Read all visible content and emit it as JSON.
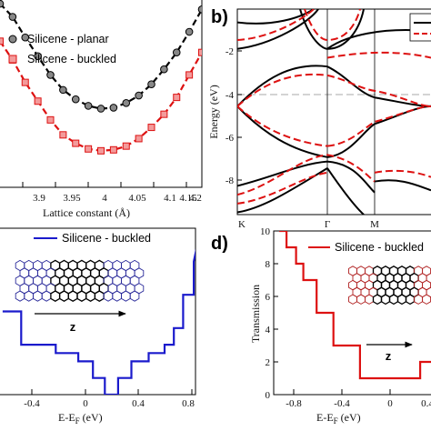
{
  "chart_data": [
    {
      "type": "line",
      "xlabel": "Lattice constant (Å)",
      "ylabel": "",
      "xlim": [
        3.8,
        4.2
      ],
      "ylim": [
        0,
        1
      ],
      "xticks": [
        "3.9",
        "3.95",
        "4",
        "4.05",
        "4.1",
        "4.15",
        "4.2"
      ],
      "legend_position": "top-left",
      "series": [
        {
          "name": "Silicene - planar",
          "color": "#000000",
          "marker": "circle",
          "x": [
            3.8,
            3.825,
            3.85,
            3.875,
            3.9,
            3.925,
            3.95,
            3.975,
            4.0,
            4.025,
            4.05,
            4.075,
            4.1,
            4.125,
            4.15,
            4.175,
            4.2
          ],
          "y": [
            0.98,
            0.91,
            0.8,
            0.7,
            0.6,
            0.52,
            0.47,
            0.435,
            0.42,
            0.425,
            0.45,
            0.49,
            0.55,
            0.63,
            0.72,
            0.83,
            0.95
          ]
        },
        {
          "name": "Silicene - buckled",
          "color": "#dd1111",
          "marker": "square",
          "x": [
            3.8,
            3.825,
            3.85,
            3.875,
            3.9,
            3.925,
            3.95,
            3.975,
            4.0,
            4.025,
            4.05,
            4.075,
            4.1,
            4.125,
            4.15,
            4.175,
            4.2
          ],
          "y": [
            0.78,
            0.68,
            0.56,
            0.46,
            0.36,
            0.28,
            0.235,
            0.205,
            0.195,
            0.2,
            0.22,
            0.26,
            0.32,
            0.39,
            0.48,
            0.6,
            0.72
          ]
        }
      ]
    },
    {
      "type": "line",
      "panel_label": "b)",
      "ylabel": "Energy (eV)",
      "ylim": [
        -9.5,
        -0.2
      ],
      "yticks": [
        "-2",
        "-4",
        "-6",
        "-8"
      ],
      "xticks": [
        "K",
        "Γ",
        "M"
      ],
      "fermi_level": -4.6
    },
    {
      "type": "line",
      "xlabel": "E-E",
      "xlabel_sub": "F",
      "xlabel_unit": " (eV)",
      "xlim": [
        -0.8,
        0.9
      ],
      "xticks": [
        "-0.4",
        "0",
        "0.4",
        "0.8"
      ],
      "legend_position": "top",
      "inset_label": "z",
      "series": [
        {
          "name": "Silicene - buckled",
          "color": "#1a1acc",
          "x": [
            -0.82,
            -0.68,
            -0.68,
            -0.42,
            -0.42,
            -0.25,
            -0.25,
            -0.14,
            -0.14,
            -0.05,
            -0.05,
            0.05,
            0.05,
            0.15,
            0.15,
            0.28,
            0.28,
            0.4,
            0.4,
            0.47,
            0.47,
            0.54,
            0.54,
            0.62,
            0.62,
            0.7
          ],
          "y": [
            5,
            5,
            3,
            3,
            2.5,
            2.5,
            2,
            2,
            1,
            1,
            0,
            0,
            1,
            1,
            2,
            2,
            2.5,
            2.5,
            3,
            3,
            4,
            4,
            6,
            6,
            8,
            11
          ]
        }
      ]
    },
    {
      "type": "line",
      "panel_label": "d)",
      "xlabel": "E-E",
      "xlabel_sub": "F",
      "xlabel_unit": " (eV)",
      "ylabel": "Transmission",
      "xlim": [
        -0.95,
        0.6
      ],
      "ylim": [
        0,
        10
      ],
      "xticks": [
        "-0.8",
        "-0.4",
        "0",
        "0.4"
      ],
      "yticks": [
        "0",
        "2",
        "4",
        "6",
        "8",
        "10"
      ],
      "legend_position": "top-right",
      "inset_label": "z",
      "series": [
        {
          "name": "Silicene - buckled",
          "color": "#dd1111",
          "x": [
            -0.92,
            -0.86,
            -0.86,
            -0.78,
            -0.78,
            -0.72,
            -0.72,
            -0.61,
            -0.61,
            -0.47,
            -0.47,
            -0.25,
            -0.25,
            0.25,
            0.25,
            0.43,
            0.43,
            0.55
          ],
          "y": [
            10,
            10,
            9,
            9,
            8,
            8,
            7,
            7,
            5,
            5,
            3,
            3,
            1,
            1,
            2,
            2,
            3,
            3
          ]
        }
      ]
    }
  ]
}
